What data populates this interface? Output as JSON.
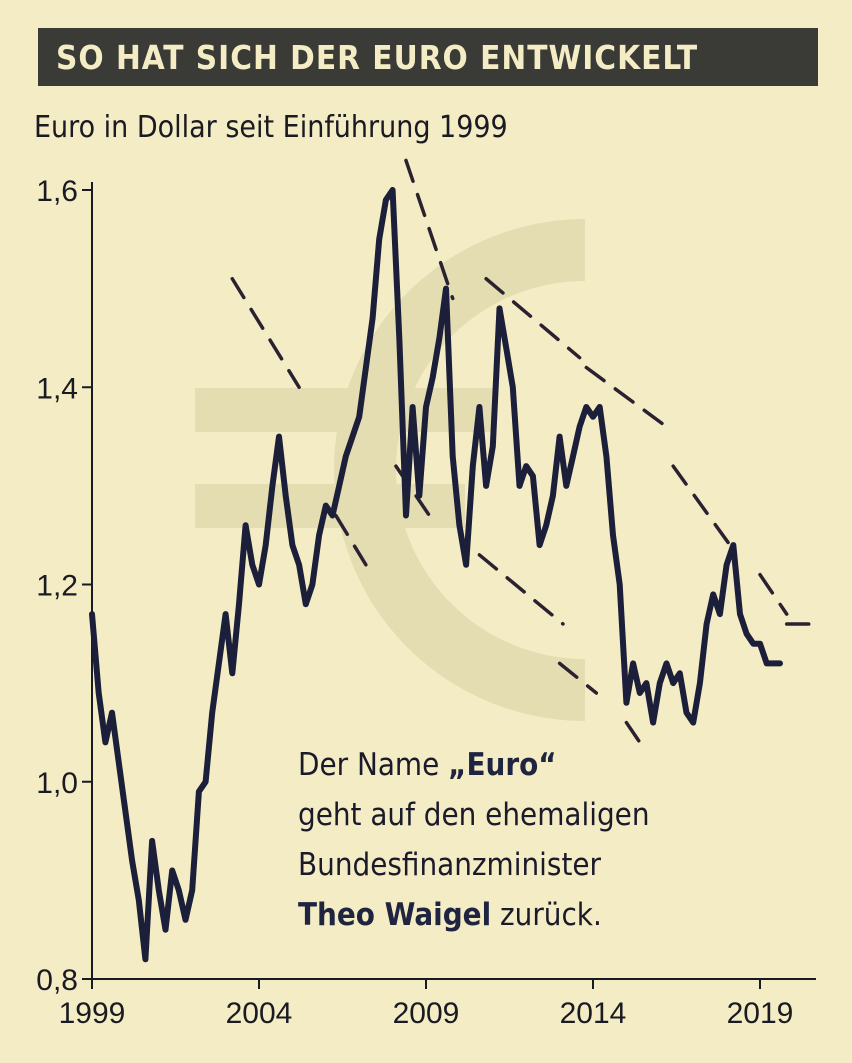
{
  "header": {
    "title": "SO HAT SICH DER EURO ENTWICKELT"
  },
  "subtitle": "Euro in Dollar seit Einführung 1999",
  "note": {
    "line1_prefix": "Der Name ",
    "line1_bold": "„Euro“",
    "line2": "geht auf den ehemaligen",
    "line3": "Bundesfinanzminister",
    "line4_bold": "Theo Waigel",
    "line4_suffix": " zurück."
  },
  "colors": {
    "background": "#f4ecc4",
    "line": "#1c1f3a",
    "banner": "#3a3a36",
    "euro_symbol": "#e4ddb2"
  },
  "chart_data": {
    "type": "line",
    "ylim": [
      0.8,
      1.6
    ],
    "xlim": [
      1999,
      2020.6
    ],
    "y_ticks": [
      {
        "value": 0.8,
        "label": "0,8"
      },
      {
        "value": 1.0,
        "label": "1,0"
      },
      {
        "value": 1.2,
        "label": "1,2"
      },
      {
        "value": 1.4,
        "label": "1,4"
      },
      {
        "value": 1.6,
        "label": "1,6"
      }
    ],
    "x_ticks": [
      {
        "value": 1999,
        "label": "1999"
      },
      {
        "value": 2004,
        "label": "2004"
      },
      {
        "value": 2009,
        "label": "2009"
      },
      {
        "value": 2014,
        "label": "2014"
      },
      {
        "value": 2019,
        "label": "2019"
      }
    ],
    "series": [
      {
        "x": [
          1999.0,
          1999.2,
          1999.4,
          1999.6,
          1999.8,
          2000.0,
          2000.2,
          2000.4,
          2000.6,
          2000.8,
          2001.0,
          2001.2,
          2001.4,
          2001.6,
          2001.8,
          2002.0,
          2002.2,
          2002.4,
          2002.6,
          2002.8,
          2003.0,
          2003.2,
          2003.4,
          2003.6,
          2003.8,
          2004.0,
          2004.2,
          2004.4,
          2004.6,
          2004.8,
          2005.0,
          2005.2,
          2005.4,
          2005.6,
          2005.8,
          2006.0,
          2006.2,
          2006.4,
          2006.6,
          2006.8,
          2007.0,
          2007.2,
          2007.4,
          2007.6,
          2007.8,
          2008.0,
          2008.2,
          2008.4,
          2008.6,
          2008.8,
          2009.0,
          2009.2,
          2009.4,
          2009.6,
          2009.8,
          2010.0,
          2010.2,
          2010.4,
          2010.6,
          2010.8,
          2011.0,
          2011.2,
          2011.4,
          2011.6,
          2011.8,
          2012.0,
          2012.2,
          2012.4,
          2012.6,
          2012.8,
          2013.0,
          2013.2,
          2013.4,
          2013.6,
          2013.8,
          2014.0,
          2014.2,
          2014.4,
          2014.6,
          2014.8,
          2015.0,
          2015.2,
          2015.4,
          2015.6,
          2015.8,
          2016.0,
          2016.2,
          2016.4,
          2016.6,
          2016.8,
          2017.0,
          2017.2,
          2017.4,
          2017.6,
          2017.8,
          2018.0,
          2018.2,
          2018.4,
          2018.6,
          2018.8,
          2019.0,
          2019.2,
          2019.4,
          2019.6
        ],
        "y": [
          1.17,
          1.09,
          1.04,
          1.07,
          1.02,
          0.97,
          0.92,
          0.88,
          0.82,
          0.94,
          0.89,
          0.85,
          0.91,
          0.89,
          0.86,
          0.89,
          0.99,
          1.0,
          1.07,
          1.12,
          1.17,
          1.11,
          1.18,
          1.26,
          1.22,
          1.2,
          1.24,
          1.3,
          1.35,
          1.29,
          1.24,
          1.22,
          1.18,
          1.2,
          1.25,
          1.28,
          1.27,
          1.3,
          1.33,
          1.35,
          1.37,
          1.42,
          1.47,
          1.55,
          1.59,
          1.6,
          1.45,
          1.27,
          1.38,
          1.29,
          1.38,
          1.41,
          1.45,
          1.5,
          1.33,
          1.26,
          1.22,
          1.32,
          1.38,
          1.3,
          1.34,
          1.48,
          1.44,
          1.4,
          1.3,
          1.32,
          1.31,
          1.24,
          1.26,
          1.29,
          1.35,
          1.3,
          1.33,
          1.36,
          1.38,
          1.37,
          1.38,
          1.33,
          1.25,
          1.2,
          1.08,
          1.12,
          1.09,
          1.1,
          1.06,
          1.1,
          1.12,
          1.1,
          1.11,
          1.07,
          1.06,
          1.1,
          1.16,
          1.19,
          1.17,
          1.22,
          1.24,
          1.17,
          1.15,
          1.14,
          1.14,
          1.12,
          1.12,
          1.12
        ]
      }
    ],
    "trendlines": [
      {
        "x": [
          2008.4,
          2009.8
        ],
        "y": [
          1.63,
          1.49
        ]
      },
      {
        "x": [
          2010.8,
          2013.6
        ],
        "y": [
          1.51,
          1.43
        ]
      },
      {
        "x": [
          2013.8,
          2016.2
        ],
        "y": [
          1.42,
          1.36
        ]
      },
      {
        "x": [
          2016.4,
          2018.1
        ],
        "y": [
          1.32,
          1.24
        ]
      },
      {
        "x": [
          2003.2,
          2005.2
        ],
        "y": [
          1.51,
          1.4
        ]
      },
      {
        "x": [
          2006.3,
          2007.2
        ],
        "y": [
          1.27,
          1.22
        ]
      },
      {
        "x": [
          2008.1,
          2009.3
        ],
        "y": [
          1.32,
          1.26
        ]
      },
      {
        "x": [
          2010.6,
          2013.1
        ],
        "y": [
          1.23,
          1.16
        ]
      },
      {
        "x": [
          2013.0,
          2014.1
        ],
        "y": [
          1.12,
          1.09
        ]
      },
      {
        "x": [
          2015.0,
          2015.6
        ],
        "y": [
          1.06,
          1.03
        ]
      },
      {
        "x": [
          2019.0,
          2019.8
        ],
        "y": [
          1.21,
          1.17
        ]
      },
      {
        "x": [
          2019.8,
          2020.6
        ],
        "y": [
          1.16,
          1.16
        ]
      }
    ]
  }
}
